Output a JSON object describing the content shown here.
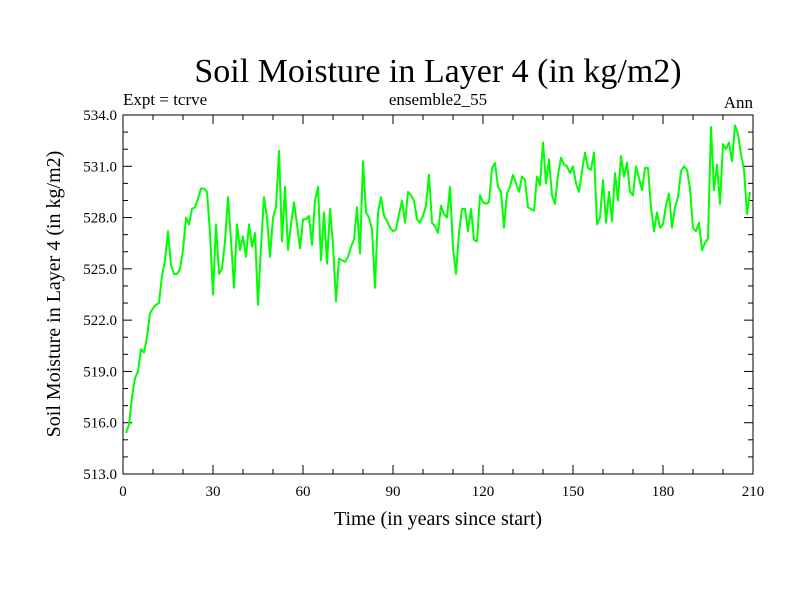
{
  "chart_data": {
    "type": "line",
    "title": "Soil Moisture in Layer 4 (in kg/m2)",
    "subtitle_left": "Expt = tcrve",
    "subtitle_center": "ensemble2_55",
    "subtitle_right": "Ann",
    "xlabel": "Time (in years since start)",
    "ylabel": "Soil Moisture in Layer 4 (in kg/m2)",
    "xlim": [
      0,
      210
    ],
    "ylim": [
      513.0,
      534.0
    ],
    "xticks": [
      0,
      30,
      60,
      90,
      120,
      150,
      180,
      210
    ],
    "xtick_labels": [
      "0",
      "30",
      "60",
      "90",
      "120",
      "150",
      "180",
      "210"
    ],
    "yticks": [
      513.0,
      516.0,
      519.0,
      522.0,
      525.0,
      528.0,
      531.0,
      534.0
    ],
    "ytick_labels": [
      "513.0",
      "516.0",
      "519.0",
      "522.0",
      "525.0",
      "528.0",
      "531.0",
      "534.0"
    ],
    "grid": false,
    "series": [
      {
        "name": "Soil Moisture Layer 4",
        "color": "#00ff00",
        "x_start": 1,
        "x_step": 1,
        "values": [
          515.4,
          515.9,
          517.5,
          518.6,
          519.0,
          520.3,
          520.1,
          521.0,
          522.4,
          522.7,
          522.9,
          523.0,
          524.6,
          525.5,
          527.2,
          525.2,
          524.7,
          524.7,
          525.0,
          526.1,
          528.0,
          527.6,
          528.5,
          528.6,
          529.1,
          529.7,
          529.7,
          529.5,
          527.1,
          523.5,
          527.6,
          524.7,
          525.0,
          526.6,
          529.2,
          526.7,
          523.9,
          527.6,
          526.1,
          526.9,
          525.7,
          527.6,
          526.3,
          527.1,
          522.9,
          526.3,
          529.2,
          528.0,
          525.7,
          528.0,
          528.6,
          531.9,
          526.6,
          529.8,
          526.1,
          527.6,
          528.9,
          527.6,
          526.2,
          527.9,
          527.9,
          528.1,
          526.4,
          529.0,
          529.8,
          525.5,
          528.3,
          525.3,
          528.5,
          526.4,
          523.1,
          525.6,
          525.5,
          525.4,
          525.7,
          526.3,
          526.7,
          528.6,
          525.9,
          531.3,
          528.3,
          528.0,
          527.3,
          523.9,
          528.3,
          529.2,
          528.1,
          527.8,
          527.4,
          527.2,
          527.3,
          528.2,
          529.0,
          527.7,
          529.5,
          529.3,
          529.0,
          527.9,
          527.7,
          528.1,
          528.7,
          530.5,
          527.7,
          527.5,
          527.1,
          528.7,
          528.2,
          528.0,
          529.8,
          526.2,
          524.7,
          527.1,
          528.5,
          528.5,
          527.2,
          528.5,
          526.7,
          526.6,
          529.3,
          528.9,
          528.8,
          528.9,
          530.9,
          531.2,
          529.8,
          529.5,
          527.4,
          529.4,
          529.8,
          530.5,
          530.0,
          529.5,
          530.4,
          530.2,
          528.6,
          528.5,
          528.4,
          530.4,
          529.9,
          532.4,
          530.0,
          531.4,
          529.3,
          528.8,
          530.5,
          531.5,
          531.1,
          531.0,
          530.6,
          531.0,
          530.0,
          529.5,
          530.7,
          531.8,
          530.9,
          530.8,
          531.8,
          527.6,
          528.0,
          530.2,
          527.7,
          529.5,
          527.8,
          530.6,
          529.0,
          531.6,
          530.4,
          531.2,
          529.5,
          529.3,
          531.0,
          530.3,
          529.6,
          530.9,
          530.9,
          528.6,
          527.2,
          528.3,
          527.4,
          527.6,
          528.7,
          529.4,
          527.4,
          528.6,
          529.2,
          530.7,
          531.0,
          530.8,
          529.7,
          527.4,
          527.2,
          527.7,
          526.1,
          526.5,
          526.8,
          533.3,
          529.6,
          531.1,
          528.8,
          532.3,
          532.0,
          532.4,
          531.3,
          533.4,
          532.9,
          531.7,
          530.8,
          528.2,
          529.5
        ]
      }
    ]
  }
}
